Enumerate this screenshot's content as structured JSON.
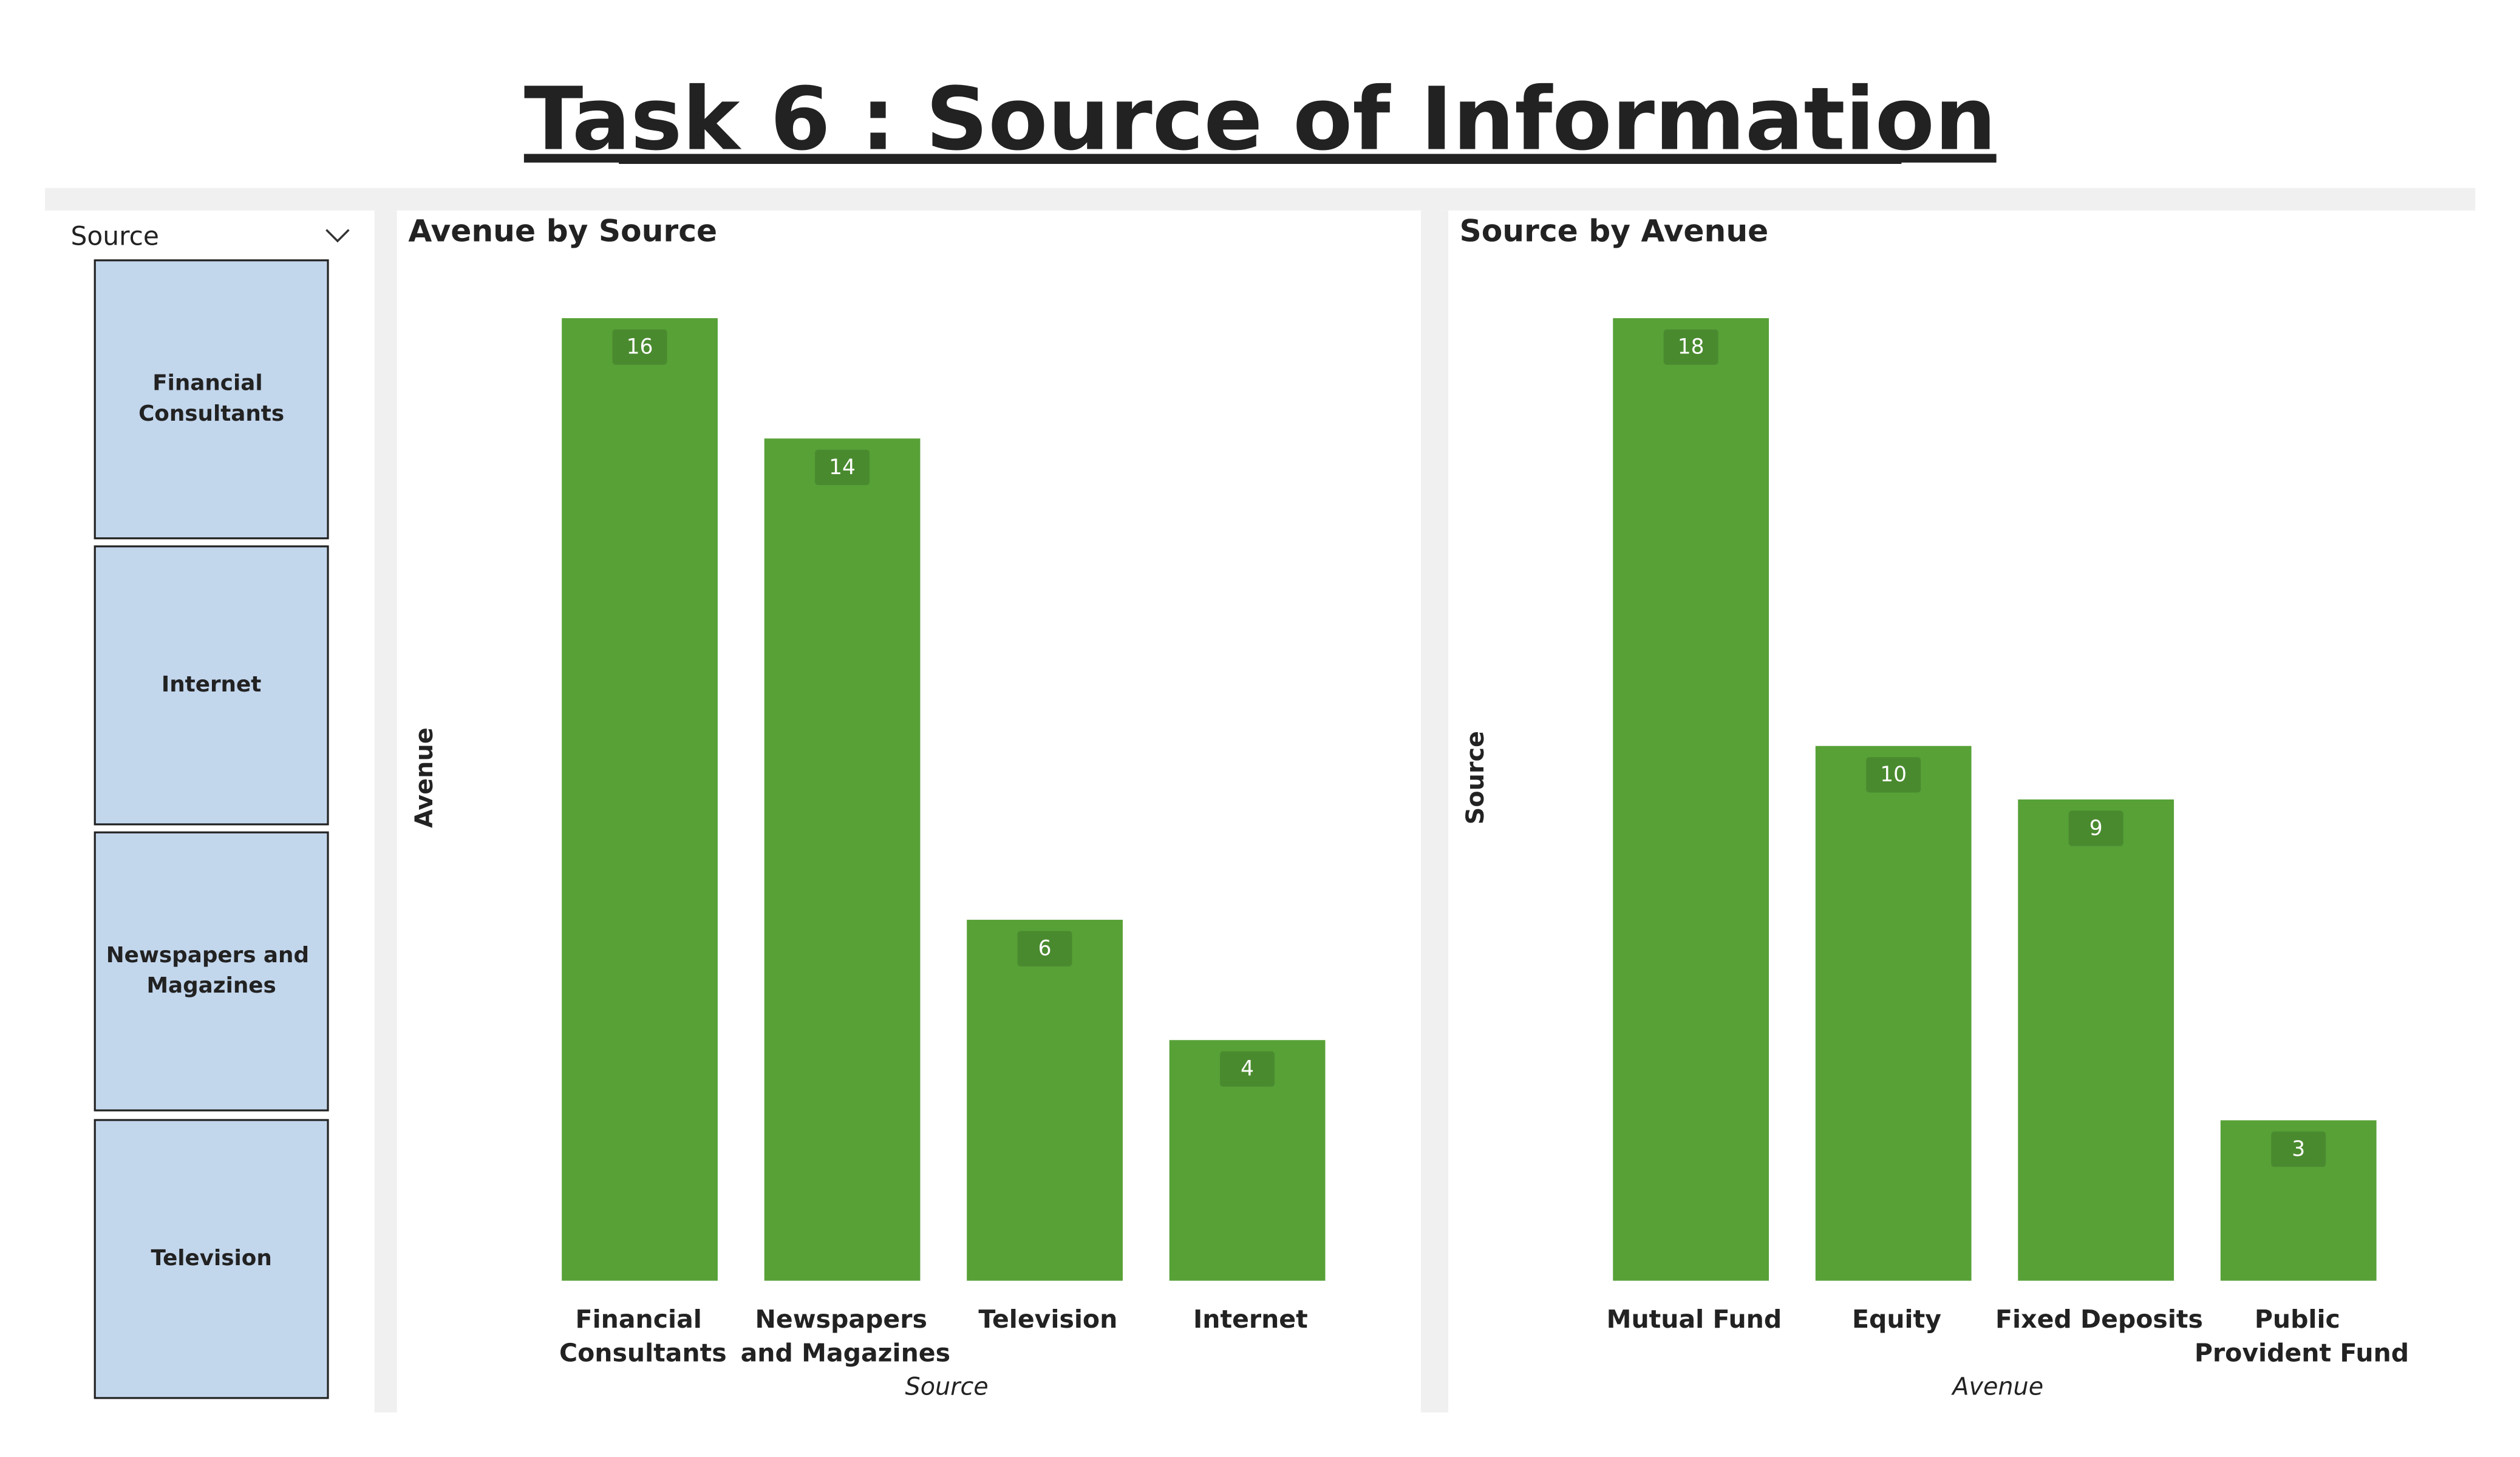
{
  "title": "Task 6 : Source of Information",
  "slicer": {
    "title": "Source",
    "items": [
      "Financial Consultants",
      "Internet",
      "Newspapers and Magazines",
      "Television"
    ]
  },
  "chart_data": [
    {
      "type": "bar",
      "title": "Avenue by Source",
      "x_label": "Source",
      "y_label": "Avenue",
      "categories": [
        "Financial Consultants",
        "Newspapers and Magazines",
        "Television",
        "Internet"
      ],
      "values": [
        16,
        14,
        6,
        4
      ],
      "color": "#57a137"
    },
    {
      "type": "bar",
      "title": "Source by Avenue",
      "x_label": "Avenue",
      "y_label": "Source",
      "categories": [
        "Mutual Fund",
        "Equity",
        "Fixed Deposits",
        "Public Provident Fund"
      ],
      "values": [
        18,
        10,
        9,
        3
      ],
      "color": "#57a137"
    }
  ]
}
